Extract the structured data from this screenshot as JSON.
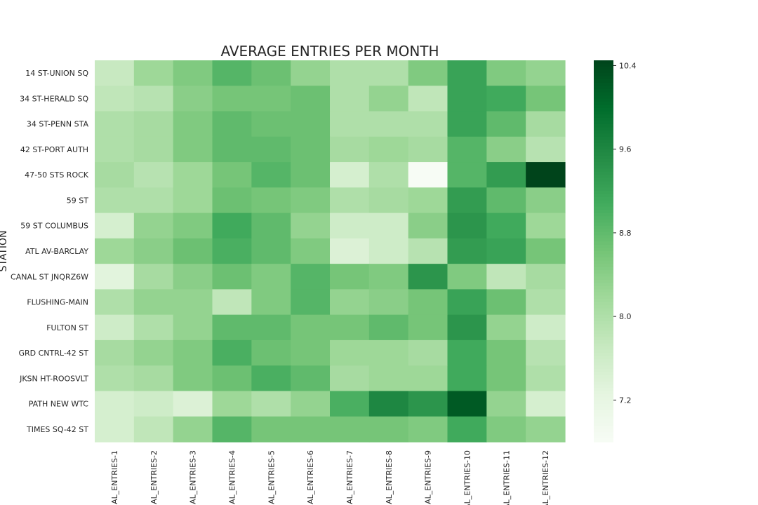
{
  "chart_data": {
    "type": "heatmap",
    "title": "AVERAGE ENTRIES PER MONTH",
    "ylabel": "STATION",
    "xlabel": "",
    "colormap": "Greens",
    "color_low": "#f7fcf5",
    "color_high": "#00441b",
    "vmin": 6.8,
    "vmax": 10.45,
    "colorbar_ticks": [
      7.2,
      8.0,
      8.8,
      9.6,
      10.4
    ],
    "colorbar_tick_labels": [
      "7.2",
      "8.0",
      "8.8",
      "9.6",
      "10.4"
    ],
    "columns": [
      "AL_ENTRIES-1",
      "AL_ENTRIES-2",
      "AL_ENTRIES-3",
      "AL_ENTRIES-4",
      "AL_ENTRIES-5",
      "AL_ENTRIES-6",
      "AL_ENTRIES-7",
      "AL_ENTRIES-8",
      "AL_ENTRIES-9",
      "AL_ENTRIES-10",
      "AL_ENTRIES-11",
      "AL_ENTRIES-12"
    ],
    "rows": [
      "14 ST-UNION SQ",
      "34 ST-HERALD SQ",
      "34 ST-PENN STA",
      "42 ST-PORT AUTH",
      "47-50 STS ROCK",
      "59 ST",
      "59 ST COLUMBUS",
      "ATL AV-BARCLAY",
      "CANAL ST JNQRZ6W",
      "FLUSHING-MAIN",
      "FULTON ST",
      "GRD CNTRL-42 ST",
      "JKSN HT-ROOSVLT",
      "PATH NEW WTC",
      "TIMES SQ-42 ST"
    ],
    "values": [
      [
        7.7,
        8.2,
        8.5,
        8.9,
        8.7,
        8.3,
        8.0,
        8.0,
        8.5,
        9.2,
        8.5,
        8.3
      ],
      [
        7.8,
        7.9,
        8.4,
        8.6,
        8.6,
        8.7,
        8.0,
        8.3,
        7.8,
        9.2,
        9.1,
        8.6
      ],
      [
        8.0,
        8.1,
        8.5,
        8.8,
        8.7,
        8.7,
        8.0,
        8.0,
        8.0,
        9.2,
        8.8,
        8.1
      ],
      [
        8.0,
        8.1,
        8.5,
        8.8,
        8.8,
        8.7,
        8.1,
        8.2,
        8.1,
        8.9,
        8.4,
        7.9
      ],
      [
        8.1,
        7.9,
        8.2,
        8.6,
        8.9,
        8.7,
        7.5,
        8.0,
        6.8,
        8.9,
        9.3,
        10.45
      ],
      [
        8.0,
        8.0,
        8.2,
        8.7,
        8.6,
        8.5,
        8.0,
        8.1,
        8.2,
        9.3,
        8.8,
        8.4
      ],
      [
        7.5,
        8.3,
        8.5,
        9.1,
        8.8,
        8.3,
        7.6,
        7.6,
        8.4,
        9.4,
        9.1,
        8.2
      ],
      [
        8.2,
        8.4,
        8.7,
        9.0,
        8.8,
        8.5,
        7.4,
        7.6,
        7.9,
        9.3,
        9.2,
        8.6
      ],
      [
        7.3,
        8.1,
        8.4,
        8.7,
        8.5,
        8.9,
        8.6,
        8.5,
        9.4,
        8.5,
        7.8,
        8.1
      ],
      [
        8.0,
        8.3,
        8.3,
        7.8,
        8.5,
        8.9,
        8.3,
        8.4,
        8.6,
        9.2,
        8.7,
        8.0
      ],
      [
        7.6,
        8.0,
        8.3,
        8.8,
        8.8,
        8.6,
        8.6,
        8.8,
        8.6,
        9.4,
        8.3,
        7.6
      ],
      [
        8.1,
        8.3,
        8.5,
        9.0,
        8.7,
        8.6,
        8.2,
        8.2,
        8.1,
        9.1,
        8.6,
        7.9
      ],
      [
        8.0,
        8.1,
        8.5,
        8.7,
        9.0,
        8.8,
        8.1,
        8.2,
        8.2,
        9.1,
        8.6,
        8.0
      ],
      [
        7.5,
        7.6,
        7.4,
        8.2,
        8.0,
        8.3,
        9.0,
        9.6,
        9.4,
        10.2,
        8.3,
        7.5
      ],
      [
        7.5,
        7.8,
        8.3,
        8.9,
        8.6,
        8.6,
        8.6,
        8.6,
        8.5,
        9.1,
        8.5,
        8.3
      ]
    ]
  }
}
